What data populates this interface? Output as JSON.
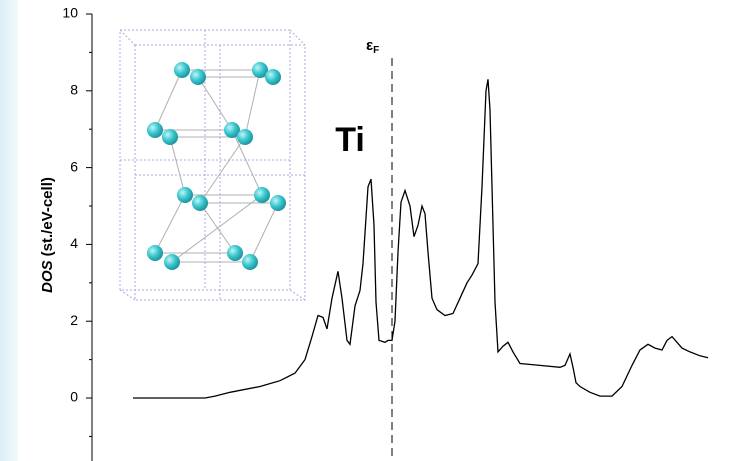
{
  "chart_data": {
    "type": "line",
    "y_label_emph": "DOS",
    "y_label": "(st./eV-cell)",
    "element_label": "Ti",
    "fermi_label": "ε",
    "fermi_sub": "F",
    "fermi_x": 300,
    "xlim": [
      0,
      660
    ],
    "ylim": [
      -1.64,
      10
    ],
    "yticks": [
      0,
      2,
      4,
      6,
      8,
      10
    ],
    "yminor": [
      -1,
      1,
      3,
      5,
      7,
      9
    ],
    "color": "#000000",
    "x": [
      41,
      113,
      123,
      138,
      168,
      188,
      203,
      213,
      220,
      226,
      231,
      235,
      240,
      246,
      250,
      255,
      258,
      263,
      268,
      271,
      276,
      279,
      282,
      284,
      287,
      293,
      296,
      300,
      303,
      306,
      309,
      313,
      318,
      322,
      326,
      330,
      333,
      336,
      340,
      345,
      353,
      361,
      368,
      375,
      380,
      386,
      390,
      394,
      396,
      398,
      400,
      403,
      406,
      411,
      416,
      421,
      428,
      448,
      468,
      473,
      478,
      481,
      484,
      488,
      498,
      508,
      520,
      530,
      540,
      548,
      556,
      563,
      570,
      575,
      580,
      585,
      590,
      598,
      608,
      616
    ],
    "values": [
      0,
      0,
      0.05,
      0.15,
      0.3,
      0.45,
      0.65,
      1.0,
      1.6,
      2.15,
      2.1,
      1.8,
      2.6,
      3.3,
      2.6,
      1.5,
      1.4,
      2.4,
      2.8,
      3.5,
      5.5,
      5.7,
      4.5,
      2.5,
      1.5,
      1.45,
      1.5,
      1.5,
      2.0,
      3.8,
      5.1,
      5.4,
      5.0,
      4.2,
      4.5,
      5.0,
      4.8,
      3.8,
      2.6,
      2.3,
      2.15,
      2.2,
      2.6,
      3.0,
      3.2,
      3.5,
      5.5,
      8.0,
      8.3,
      7.5,
      5.5,
      2.5,
      1.2,
      1.35,
      1.45,
      1.2,
      0.9,
      0.85,
      0.8,
      0.85,
      1.15,
      0.8,
      0.4,
      0.3,
      0.15,
      0.05,
      0.05,
      0.3,
      0.85,
      1.25,
      1.4,
      1.3,
      1.25,
      1.5,
      1.6,
      1.45,
      1.3,
      1.2,
      1.1,
      1.05
    ]
  }
}
